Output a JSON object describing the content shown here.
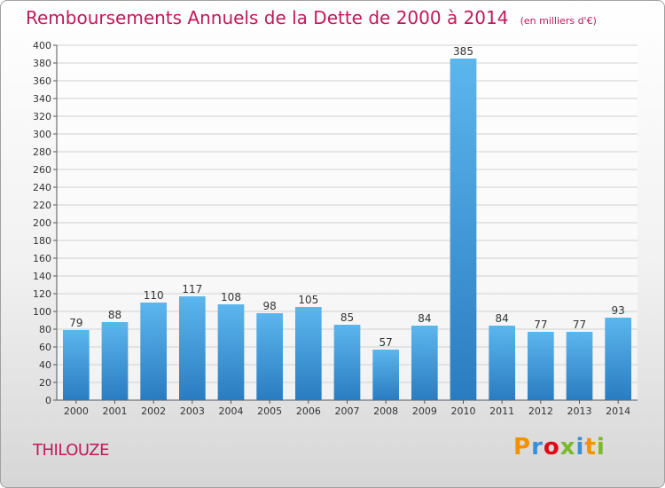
{
  "title": "Remboursements Annuels de la Dette de 2000 à 2014",
  "subtitle": "(en milliers d'€)",
  "commune": "THILOUZE",
  "logo_text": "Proxiti",
  "colors": {
    "title": "#c2185b",
    "bar_top": "#5cb6ee",
    "bar_bottom": "#2a7cc0",
    "grid": "#d0d0d0"
  },
  "chart_data": {
    "type": "bar",
    "title": "Remboursements Annuels de la Dette de 2000 à 2014",
    "subtitle": "(en milliers d'€)",
    "categories": [
      "2000",
      "2001",
      "2002",
      "2003",
      "2004",
      "2005",
      "2006",
      "2007",
      "2008",
      "2009",
      "2010",
      "2011",
      "2012",
      "2013",
      "2014"
    ],
    "values": [
      79,
      88,
      110,
      117,
      108,
      98,
      105,
      85,
      57,
      84,
      385,
      84,
      77,
      77,
      93
    ],
    "ylim": [
      0,
      400
    ],
    "yticks": [
      0,
      20,
      40,
      60,
      80,
      100,
      120,
      140,
      160,
      180,
      200,
      220,
      240,
      260,
      280,
      300,
      320,
      340,
      360,
      380,
      400
    ],
    "grid": true,
    "legend": "none"
  }
}
